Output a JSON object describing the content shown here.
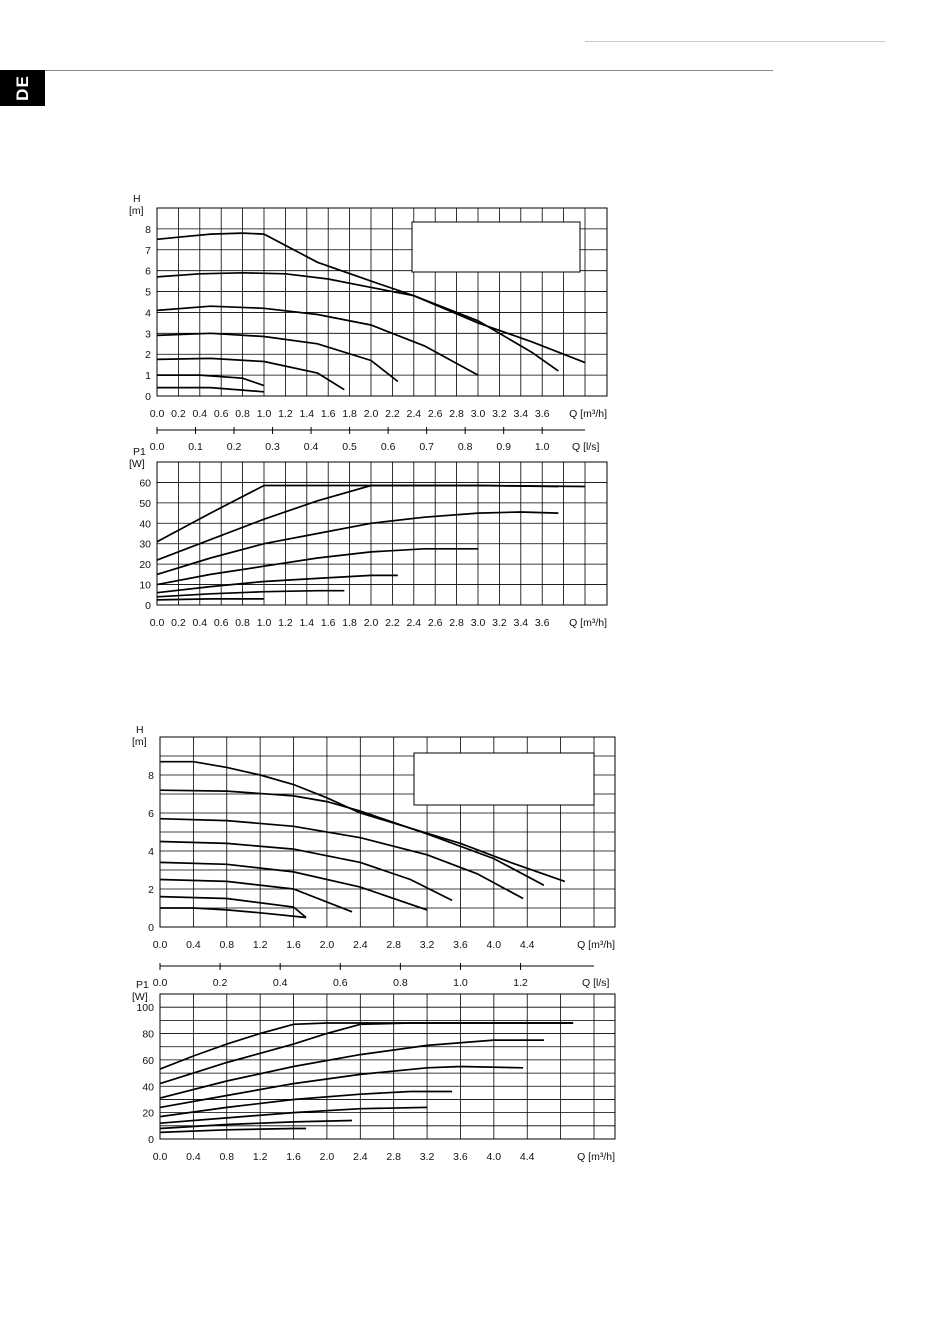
{
  "header": {
    "language_tab": "DE"
  },
  "chart_data": [
    {
      "type": "line",
      "title": "",
      "xlabel": "Q [m³/h]",
      "ylabel": "H [m]",
      "y_unit_label": "H",
      "y_unit": "[m]",
      "xlim": [
        0,
        4.0
      ],
      "ylim": [
        0,
        9
      ],
      "xticks": [
        "0.0",
        "0.2",
        "0.4",
        "0.6",
        "0.8",
        "1.0",
        "1.2",
        "1.4",
        "1.6",
        "1.8",
        "2.0",
        "2.2",
        "2.4",
        "2.6",
        "2.8",
        "3.0",
        "3.2",
        "3.4",
        "3.6"
      ],
      "yticks": [
        "0",
        "1",
        "2",
        "3",
        "4",
        "5",
        "6",
        "7",
        "8"
      ],
      "secondary_axis": {
        "label": "Q [l/s]",
        "ticks": [
          "0.0",
          "0.1",
          "0.2",
          "0.3",
          "0.4",
          "0.5",
          "0.6",
          "0.7",
          "0.8",
          "0.9",
          "1.0"
        ],
        "ticks_values": [
          0,
          0.1,
          0.2,
          0.3,
          0.4,
          0.5,
          0.6,
          0.7,
          0.8,
          0.9,
          1.0
        ]
      },
      "series": [
        {
          "x": [
            0,
            0.2,
            0.5,
            0.8,
            1.0,
            1.5,
            2.0,
            2.4,
            3.0,
            3.5,
            4.0
          ],
          "y": [
            7.5,
            7.6,
            7.75,
            7.8,
            7.75,
            6.4,
            5.5,
            4.8,
            3.5,
            2.6,
            1.6
          ]
        },
        {
          "x": [
            0,
            0.4,
            0.8,
            1.2,
            1.6,
            2.0,
            2.4,
            3.0,
            3.5,
            3.75
          ],
          "y": [
            5.7,
            5.85,
            5.9,
            5.85,
            5.6,
            5.2,
            4.8,
            3.6,
            2.1,
            1.2
          ]
        },
        {
          "x": [
            0,
            0.5,
            1.0,
            1.5,
            2.0,
            2.5,
            3.0
          ],
          "y": [
            4.1,
            4.3,
            4.2,
            3.9,
            3.4,
            2.4,
            1.0
          ]
        },
        {
          "x": [
            0,
            0.5,
            1.0,
            1.5,
            2.0,
            2.25
          ],
          "y": [
            2.9,
            3.0,
            2.85,
            2.5,
            1.7,
            0.7
          ]
        },
        {
          "x": [
            0,
            0.5,
            1.0,
            1.5,
            1.75
          ],
          "y": [
            1.75,
            1.8,
            1.65,
            1.1,
            0.3
          ]
        },
        {
          "x": [
            0,
            0.4,
            0.8,
            1.0
          ],
          "y": [
            1.0,
            1.0,
            0.85,
            0.5
          ]
        },
        {
          "x": [
            0,
            0.5,
            1.0
          ],
          "y": [
            0.4,
            0.4,
            0.2
          ]
        }
      ]
    },
    {
      "type": "line",
      "title": "",
      "xlabel": "Q [m³/h]",
      "ylabel": "P1 [W]",
      "y_unit_label": "P1",
      "y_unit": "[W]",
      "xlim": [
        0,
        4.0
      ],
      "ylim": [
        0,
        70
      ],
      "xticks": [
        "0.0",
        "0.2",
        "0.4",
        "0.6",
        "0.8",
        "1.0",
        "1.2",
        "1.4",
        "1.6",
        "1.8",
        "2.0",
        "2.2",
        "2.4",
        "2.6",
        "2.8",
        "3.0",
        "3.2",
        "3.4",
        "3.6"
      ],
      "yticks": [
        "0",
        "10",
        "20",
        "30",
        "40",
        "50",
        "60"
      ],
      "series": [
        {
          "x": [
            0,
            0.5,
            1.0,
            1.5,
            2.0,
            3.0,
            4.0
          ],
          "y": [
            31,
            45,
            58.5,
            58.5,
            58.5,
            58.5,
            58
          ]
        },
        {
          "x": [
            0,
            0.5,
            1.0,
            1.5,
            2.0,
            3.0,
            3.75
          ],
          "y": [
            22,
            32,
            42,
            51,
            58.5,
            58.5,
            58
          ]
        },
        {
          "x": [
            0,
            0.5,
            1.0,
            1.5,
            2.0,
            2.5,
            3.0,
            3.4,
            3.75
          ],
          "y": [
            15,
            23,
            30,
            35,
            40,
            43,
            45,
            45.5,
            45
          ]
        },
        {
          "x": [
            0,
            0.5,
            1.0,
            1.5,
            2.0,
            2.5,
            3.0
          ],
          "y": [
            10,
            15,
            19,
            23,
            26,
            27.5,
            27.5
          ]
        },
        {
          "x": [
            0,
            0.5,
            1.0,
            1.5,
            2.0,
            2.25
          ],
          "y": [
            6,
            9,
            11.5,
            13,
            14.5,
            14.5
          ]
        },
        {
          "x": [
            0,
            0.5,
            1.0,
            1.5,
            1.75
          ],
          "y": [
            4,
            5.5,
            6.5,
            7,
            7
          ]
        },
        {
          "x": [
            0,
            0.5,
            1.0
          ],
          "y": [
            2.5,
            3,
            3
          ]
        }
      ]
    },
    {
      "type": "line",
      "title": "",
      "xlabel": "Q [m³/h]",
      "ylabel": "H [m]",
      "y_unit_label": "H",
      "y_unit": "[m]",
      "xlim": [
        0,
        5.2
      ],
      "ylim": [
        0,
        10
      ],
      "xticks": [
        "0.0",
        "0.4",
        "0.8",
        "1.2",
        "1.6",
        "2.0",
        "2.4",
        "2.8",
        "3.2",
        "3.6",
        "4.0",
        "4.4"
      ],
      "yticks": [
        "0",
        "2",
        "4",
        "6",
        "8"
      ],
      "secondary_axis": {
        "label": "Q [l/s]",
        "ticks": [
          "0.0",
          "0.2",
          "0.4",
          "0.6",
          "0.8",
          "1.0",
          "1.2"
        ],
        "ticks_values": [
          0,
          0.2,
          0.4,
          0.6,
          0.8,
          1.0,
          1.2
        ]
      },
      "series": [
        {
          "x": [
            0,
            0.4,
            0.8,
            1.2,
            1.6,
            2.0,
            2.4,
            3.0,
            3.6,
            4.2,
            4.85
          ],
          "y": [
            8.7,
            8.7,
            8.4,
            8.0,
            7.5,
            6.8,
            6.0,
            5.2,
            4.4,
            3.4,
            2.4
          ]
        },
        {
          "x": [
            0,
            0.8,
            1.6,
            2.0,
            2.4,
            3.2,
            4.0,
            4.6
          ],
          "y": [
            7.2,
            7.15,
            6.9,
            6.6,
            6.1,
            4.9,
            3.6,
            2.2
          ]
        },
        {
          "x": [
            0,
            0.8,
            1.6,
            2.4,
            3.2,
            3.8,
            4.35
          ],
          "y": [
            5.7,
            5.6,
            5.3,
            4.7,
            3.8,
            2.8,
            1.5
          ]
        },
        {
          "x": [
            0,
            0.8,
            1.6,
            2.4,
            3.0,
            3.5
          ],
          "y": [
            4.5,
            4.4,
            4.1,
            3.4,
            2.5,
            1.4
          ]
        },
        {
          "x": [
            0,
            0.8,
            1.6,
            2.4,
            3.2
          ],
          "y": [
            3.4,
            3.3,
            2.9,
            2.1,
            0.9
          ]
        },
        {
          "x": [
            0,
            0.8,
            1.6,
            2.3
          ],
          "y": [
            2.5,
            2.4,
            2.0,
            0.8
          ]
        },
        {
          "x": [
            0,
            0.8,
            1.6,
            1.75
          ],
          "y": [
            1.6,
            1.5,
            1.05,
            0.5
          ]
        },
        {
          "x": [
            0,
            0.4,
            0.8,
            1.2,
            1.75
          ],
          "y": [
            1.0,
            1.0,
            0.9,
            0.75,
            0.5
          ]
        }
      ]
    },
    {
      "type": "line",
      "title": "",
      "xlabel": "Q [m³/h]",
      "ylabel": "P1 [W]",
      "y_unit_label": "P1",
      "y_unit": "[W]",
      "xlim": [
        0,
        5.2
      ],
      "ylim": [
        0,
        110
      ],
      "xticks": [
        "0.0",
        "0.4",
        "0.8",
        "1.2",
        "1.6",
        "2.0",
        "2.4",
        "2.8",
        "3.2",
        "3.6",
        "4.0",
        "4.4"
      ],
      "yticks": [
        "0",
        "20",
        "40",
        "60",
        "80",
        "100"
      ],
      "series": [
        {
          "x": [
            0,
            0.4,
            0.8,
            1.2,
            1.6,
            2.0,
            2.4,
            3.0,
            4.0,
            4.95
          ],
          "y": [
            53,
            63,
            72,
            80,
            87,
            88,
            88,
            88,
            88,
            88
          ]
        },
        {
          "x": [
            0,
            0.4,
            0.8,
            1.2,
            1.6,
            2.0,
            2.4,
            3.0,
            4.0,
            4.95
          ],
          "y": [
            42,
            50,
            58,
            65,
            72,
            80,
            87,
            88,
            88,
            88
          ]
        },
        {
          "x": [
            0,
            0.8,
            1.6,
            2.4,
            3.2,
            4.0,
            4.6
          ],
          "y": [
            31,
            44,
            55,
            64,
            71,
            75,
            75
          ]
        },
        {
          "x": [
            0,
            0.8,
            1.6,
            2.4,
            3.2,
            3.6,
            4.35
          ],
          "y": [
            24,
            33,
            42,
            49,
            54,
            55,
            54
          ]
        },
        {
          "x": [
            0,
            0.8,
            1.6,
            2.4,
            3.0,
            3.5
          ],
          "y": [
            17,
            24,
            30,
            34,
            36,
            36
          ]
        },
        {
          "x": [
            0,
            0.8,
            1.6,
            2.4,
            3.2
          ],
          "y": [
            12,
            16,
            20,
            23,
            24
          ]
        },
        {
          "x": [
            0,
            0.8,
            1.6,
            2.3
          ],
          "y": [
            8,
            11,
            13,
            14
          ]
        },
        {
          "x": [
            0,
            0.8,
            1.6,
            1.75
          ],
          "y": [
            5,
            7,
            8,
            8
          ]
        }
      ]
    }
  ]
}
